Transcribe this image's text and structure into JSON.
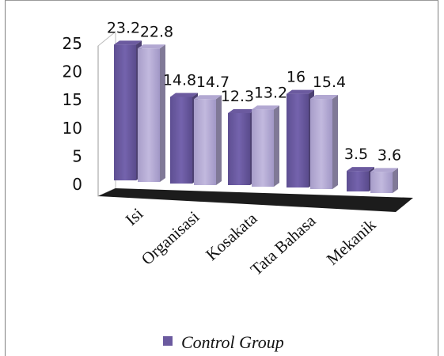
{
  "chart_data": {
    "type": "bar",
    "categories": [
      "Isi",
      "Organisasi",
      "Kosakata",
      "Tata Bahasa",
      "Mekanik"
    ],
    "series": [
      {
        "name": "Control Group",
        "values": [
          23.2,
          14.8,
          12.3,
          16,
          3.5
        ],
        "color": "#6b5a9f"
      },
      {
        "values": [
          22.8,
          14.7,
          13.2,
          15.4,
          3.6
        ],
        "color": "#b2a8d2"
      }
    ],
    "yticks": [
      "0",
      "5",
      "10",
      "15",
      "20",
      "25"
    ],
    "ylim": [
      0,
      25
    ],
    "grid": false,
    "legend": "bottom",
    "title": "",
    "xlabel": "",
    "ylabel": ""
  }
}
